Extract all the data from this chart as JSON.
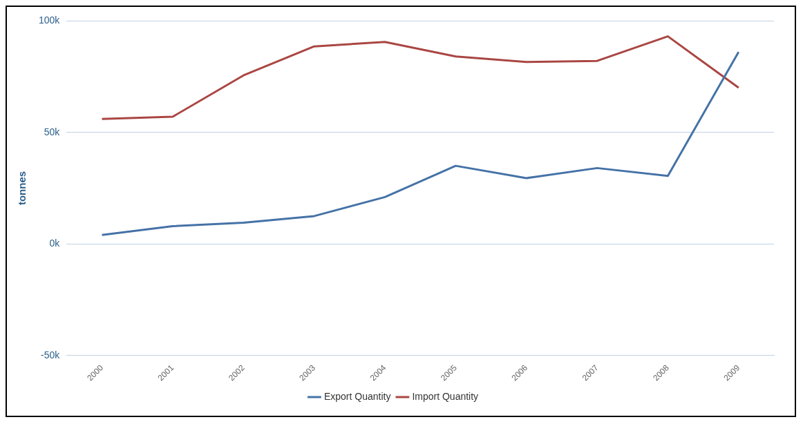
{
  "chart_data": {
    "type": "line",
    "ylabel": "tonnes",
    "categories": [
      "2000",
      "2001",
      "2002",
      "2003",
      "2004",
      "2005",
      "2006",
      "2007",
      "2008",
      "2009"
    ],
    "series": [
      {
        "name": "Export Quantity",
        "color": "#4572a7",
        "values": [
          4000,
          8000,
          9500,
          12500,
          21000,
          35000,
          29500,
          34000,
          30500,
          86000
        ]
      },
      {
        "name": "Import Quantity",
        "color": "#aa4643",
        "values": [
          56000,
          57000,
          75500,
          88500,
          90500,
          84000,
          81500,
          82000,
          93000,
          70000
        ]
      }
    ],
    "ylim": [
      -50000,
      100000
    ],
    "yticks": [
      {
        "value": -50000,
        "label": "-50k"
      },
      {
        "value": 0,
        "label": "0k"
      },
      {
        "value": 50000,
        "label": "50k"
      },
      {
        "value": 100000,
        "label": "100k"
      }
    ],
    "grid": "y",
    "legend": "bottom",
    "marker": "none",
    "line_style": "solid"
  }
}
